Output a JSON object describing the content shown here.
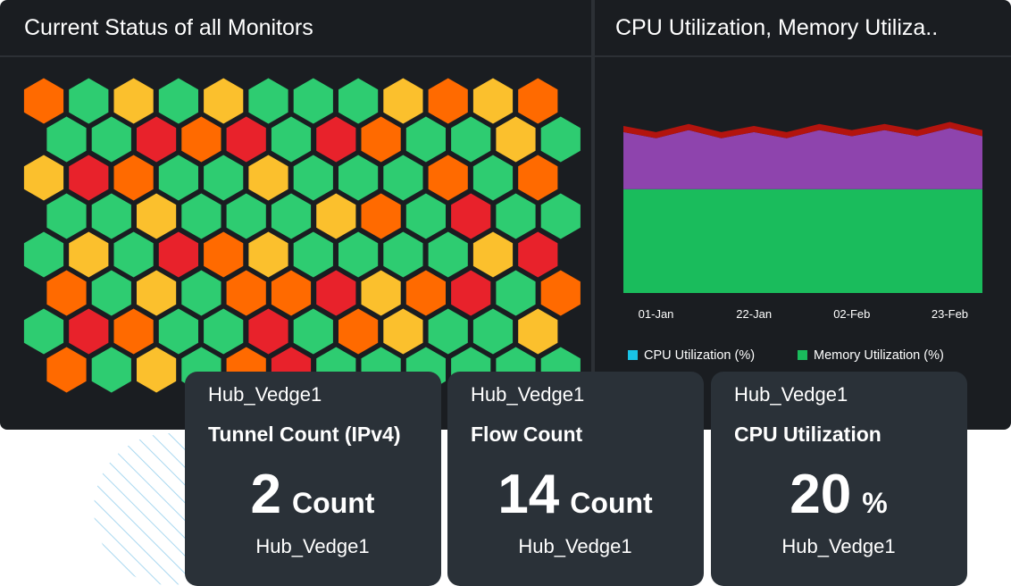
{
  "left_panel": {
    "title": "Current Status of all Monitors"
  },
  "chart_data": {
    "type": "area",
    "title": "CPU Utilization, Memory Utiliza..",
    "categories": [
      null,
      "01-Jan",
      null,
      null,
      "22-Jan",
      null,
      null,
      "02-Feb",
      null,
      null,
      "23-Feb",
      null
    ],
    "stacked": true,
    "series": [
      {
        "color": "#1abc5c",
        "values": [
          51,
          51,
          51,
          51,
          51,
          51,
          51,
          51,
          51,
          51,
          51,
          51
        ]
      },
      {
        "color": "#8e44ad",
        "values": [
          28,
          25,
          29,
          25,
          28,
          25,
          29,
          26,
          29,
          26,
          30,
          26
        ]
      },
      {
        "color": "#b3140e",
        "values": [
          3,
          3,
          3,
          3,
          3,
          3,
          3,
          3,
          3,
          3,
          3,
          3
        ]
      }
    ],
    "ylim": [
      0,
      100
    ],
    "legend": [
      {
        "label": "CPU Utilization (%)",
        "color": "#19c3e6"
      },
      {
        "label": "Memory Utilization (%)",
        "color": "#1abc5c"
      }
    ]
  },
  "cards": [
    {
      "header": "Hub_Vedge1",
      "title": "Tunnel Count (IPv4)",
      "value": 2,
      "unit": "Count",
      "footer": "Hub_Vedge1"
    },
    {
      "header": "Hub_Vedge1",
      "title": "Flow Count",
      "value": 14,
      "unit": "Count",
      "footer": "Hub_Vedge1"
    },
    {
      "header": "Hub_Vedge1",
      "title": "CPU Utilization",
      "value": 20,
      "unit": "%",
      "footer": "Hub_Vedge1"
    }
  ]
}
